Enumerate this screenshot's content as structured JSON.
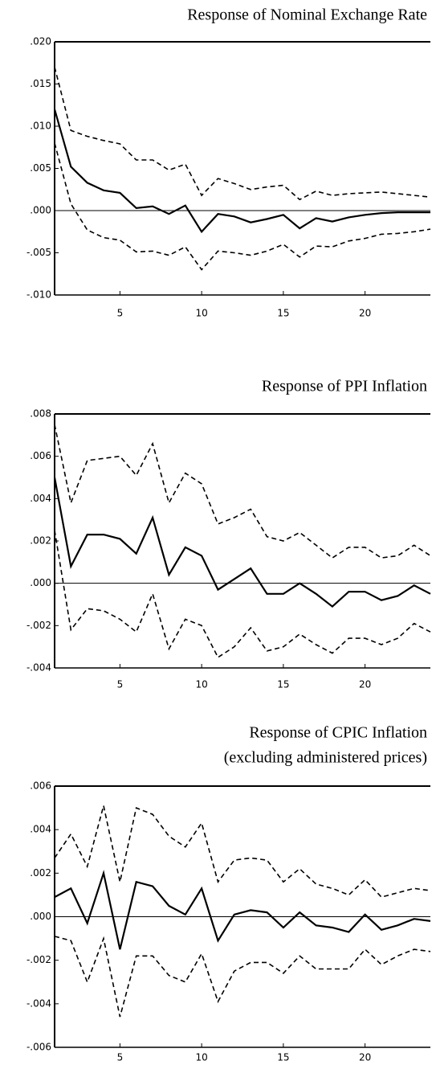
{
  "chart_data": [
    {
      "type": "line",
      "title": "Response of Nominal Exchange Rate",
      "x": [
        1,
        2,
        3,
        4,
        5,
        6,
        7,
        8,
        9,
        10,
        11,
        12,
        13,
        14,
        15,
        16,
        17,
        18,
        19,
        20,
        21,
        22,
        23,
        24
      ],
      "xlim": [
        1,
        24
      ],
      "xticks": [
        5,
        10,
        15,
        20
      ],
      "ylim": [
        -0.01,
        0.02
      ],
      "yticks": [
        {
          "value": -0.01,
          "label": "-.010"
        },
        {
          "value": -0.005,
          "label": "-.005"
        },
        {
          "value": 0,
          "label": ".000"
        },
        {
          "value": 0.005,
          "label": ".005"
        },
        {
          "value": 0.01,
          "label": ".010"
        },
        {
          "value": 0.015,
          "label": ".015"
        },
        {
          "value": 0.02,
          "label": ".020"
        }
      ],
      "zero_line": true,
      "series": [
        {
          "color": "#000000",
          "style": "solid",
          "values": [
            0.012,
            0.0052,
            0.0033,
            0.0024,
            0.0021,
            0.0003,
            0.0005,
            -0.0004,
            0.0006,
            -0.0025,
            -0.0004,
            -0.0007,
            -0.0014,
            -0.001,
            -0.0005,
            -0.0021,
            -0.0009,
            -0.0013,
            -0.0008,
            -0.0005,
            -0.0003,
            -0.0002,
            -0.0002,
            -0.0002
          ]
        },
        {
          "color": "#000000",
          "style": "dashed",
          "values": [
            0.017,
            0.0095,
            0.0088,
            0.0083,
            0.0079,
            0.006,
            0.006,
            0.0048,
            0.0055,
            0.0018,
            0.0038,
            0.0032,
            0.0025,
            0.0028,
            0.003,
            0.0013,
            0.0023,
            0.0018,
            0.002,
            0.0021,
            0.0022,
            0.002,
            0.0018,
            0.0016
          ]
        },
        {
          "color": "#000000",
          "style": "dashed",
          "values": [
            0.008,
            0.0008,
            -0.0023,
            -0.0032,
            -0.0035,
            -0.0049,
            -0.0048,
            -0.0053,
            -0.0043,
            -0.007,
            -0.0048,
            -0.005,
            -0.0053,
            -0.0048,
            -0.004,
            -0.0055,
            -0.0042,
            -0.0043,
            -0.0036,
            -0.0033,
            -0.0028,
            -0.0027,
            -0.0025,
            -0.0022
          ]
        }
      ]
    },
    {
      "type": "line",
      "title": "Response of PPI Inflation",
      "x": [
        1,
        2,
        3,
        4,
        5,
        6,
        7,
        8,
        9,
        10,
        11,
        12,
        13,
        14,
        15,
        16,
        17,
        18,
        19,
        20,
        21,
        22,
        23,
        24
      ],
      "xlim": [
        1,
        24
      ],
      "xticks": [
        5,
        10,
        15,
        20
      ],
      "ylim": [
        -0.004,
        0.008
      ],
      "yticks": [
        {
          "value": -0.004,
          "label": "-.004"
        },
        {
          "value": -0.002,
          "label": "-.002"
        },
        {
          "value": 0,
          "label": ".000"
        },
        {
          "value": 0.002,
          "label": ".002"
        },
        {
          "value": 0.004,
          "label": ".004"
        },
        {
          "value": 0.006,
          "label": ".006"
        },
        {
          "value": 0.008,
          "label": ".008"
        }
      ],
      "zero_line": true,
      "series": [
        {
          "color": "#000000",
          "style": "solid",
          "values": [
            0.005,
            0.0008,
            0.0023,
            0.0023,
            0.0021,
            0.0014,
            0.0031,
            0.0004,
            0.0017,
            0.0013,
            -0.0003,
            0.0002,
            0.0007,
            -0.0005,
            -0.0005,
            0,
            -0.0005,
            -0.0011,
            -0.0004,
            -0.0004,
            -0.0008,
            -0.0006,
            -0.0001,
            -0.0005
          ]
        },
        {
          "color": "#000000",
          "style": "dashed",
          "values": [
            0.0075,
            0.0038,
            0.0058,
            0.0059,
            0.006,
            0.0051,
            0.0066,
            0.0038,
            0.0052,
            0.0047,
            0.0028,
            0.0031,
            0.0035,
            0.0022,
            0.002,
            0.0024,
            0.0018,
            0.0012,
            0.0017,
            0.0017,
            0.0012,
            0.0013,
            0.0018,
            0.0013
          ]
        },
        {
          "color": "#000000",
          "style": "dashed",
          "values": [
            0.0025,
            -0.0022,
            -0.0012,
            -0.0013,
            -0.0017,
            -0.0023,
            -0.0005,
            -0.0031,
            -0.0017,
            -0.002,
            -0.0035,
            -0.003,
            -0.0021,
            -0.0032,
            -0.003,
            -0.0024,
            -0.0029,
            -0.0033,
            -0.0026,
            -0.0026,
            -0.0029,
            -0.0026,
            -0.0019,
            -0.0023
          ]
        }
      ]
    },
    {
      "type": "line",
      "title": "Response of CPIC Inflation",
      "subtitle": "(excluding administered prices)",
      "x": [
        1,
        2,
        3,
        4,
        5,
        6,
        7,
        8,
        9,
        10,
        11,
        12,
        13,
        14,
        15,
        16,
        17,
        18,
        19,
        20,
        21,
        22,
        23,
        24
      ],
      "xlim": [
        1,
        24
      ],
      "xticks": [
        5,
        10,
        15,
        20
      ],
      "ylim": [
        -0.006,
        0.006
      ],
      "yticks": [
        {
          "value": -0.006,
          "label": "-.006"
        },
        {
          "value": -0.004,
          "label": "-.004"
        },
        {
          "value": -0.002,
          "label": "-.002"
        },
        {
          "value": 0,
          "label": ".000"
        },
        {
          "value": 0.002,
          "label": ".002"
        },
        {
          "value": 0.004,
          "label": ".004"
        },
        {
          "value": 0.006,
          "label": ".006"
        }
      ],
      "zero_line": true,
      "series": [
        {
          "color": "#000000",
          "style": "solid",
          "values": [
            0.0009,
            0.0013,
            -0.0003,
            0.002,
            -0.0015,
            0.0016,
            0.0014,
            0.0005,
            0.0001,
            0.0013,
            -0.0011,
            0.0001,
            0.0003,
            0.0002,
            -0.0005,
            0.0002,
            -0.0004,
            -0.0005,
            -0.0007,
            0.0001,
            -0.0006,
            -0.0004,
            -0.0001,
            -0.0002
          ]
        },
        {
          "color": "#000000",
          "style": "dashed",
          "values": [
            0.0027,
            0.0038,
            0.0023,
            0.0051,
            0.0016,
            0.005,
            0.0047,
            0.0037,
            0.0032,
            0.0043,
            0.0016,
            0.0026,
            0.0027,
            0.0026,
            0.0016,
            0.0022,
            0.0015,
            0.0013,
            0.001,
            0.0017,
            0.0009,
            0.0011,
            0.0013,
            0.0012
          ]
        },
        {
          "color": "#000000",
          "style": "dashed",
          "values": [
            -0.0009,
            -0.0011,
            -0.003,
            -0.001,
            -0.0046,
            -0.0018,
            -0.0018,
            -0.0027,
            -0.003,
            -0.0017,
            -0.0039,
            -0.0025,
            -0.0021,
            -0.0021,
            -0.0026,
            -0.0018,
            -0.0024,
            -0.0024,
            -0.0024,
            -0.0015,
            -0.0022,
            -0.0018,
            -0.0015,
            -0.0016
          ]
        }
      ]
    }
  ]
}
